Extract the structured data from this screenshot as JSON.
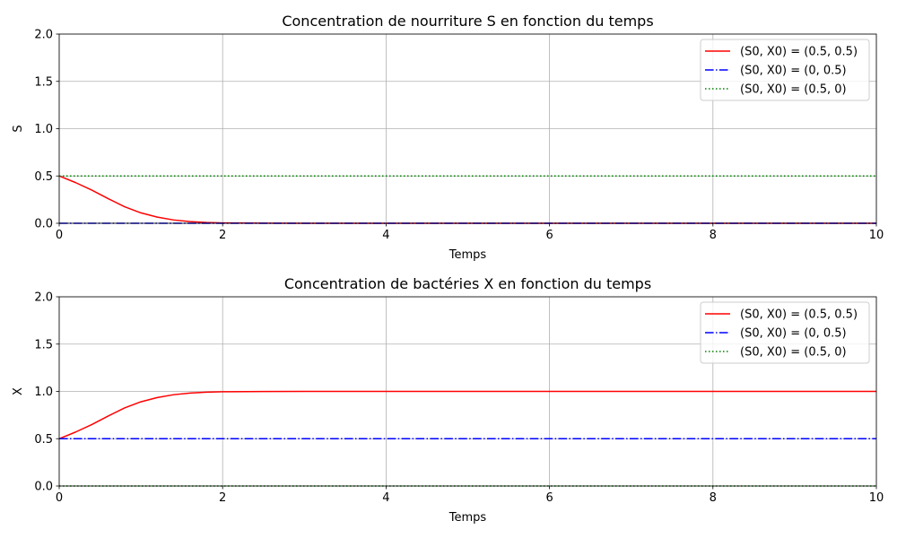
{
  "chart_data": [
    {
      "type": "line",
      "title": "Concentration de nourriture S en fonction du temps",
      "xlabel": "Temps",
      "ylabel": "S",
      "xlim": [
        0,
        10
      ],
      "ylim": [
        0,
        2
      ],
      "xticks": [
        0,
        2,
        4,
        6,
        8,
        10
      ],
      "yticks": [
        0.0,
        0.5,
        1.0,
        1.5,
        2.0
      ],
      "xtick_labels": [
        "0",
        "2",
        "4",
        "6",
        "8",
        "10"
      ],
      "ytick_labels": [
        "0.0",
        "0.5",
        "1.0",
        "1.5",
        "2.0"
      ],
      "grid": true,
      "legend_position": "top-right",
      "series": [
        {
          "name": "(S0, X0) = (0.5, 0.5)",
          "color": "#ff0000",
          "style": "solid",
          "x": [
            0,
            0.2,
            0.4,
            0.6,
            0.8,
            1.0,
            1.2,
            1.4,
            1.6,
            1.8,
            2.0,
            2.5,
            3,
            4,
            5,
            6,
            7,
            8,
            9,
            10
          ],
          "y": [
            0.5,
            0.43,
            0.35,
            0.26,
            0.175,
            0.11,
            0.065,
            0.035,
            0.018,
            0.008,
            0.004,
            0.001,
            0,
            0,
            0,
            0,
            0,
            0,
            0,
            0
          ]
        },
        {
          "name": "(S0, X0) = (0, 0.5)",
          "color": "#0000ff",
          "style": "dashdot",
          "x": [
            0,
            10
          ],
          "y": [
            0,
            0
          ]
        },
        {
          "name": "(S0, X0) = (0.5, 0)",
          "color": "#008000",
          "style": "dotted",
          "x": [
            0,
            10
          ],
          "y": [
            0.5,
            0.5
          ]
        }
      ]
    },
    {
      "type": "line",
      "title": "Concentration de bactéries X en fonction du temps",
      "xlabel": "Temps",
      "ylabel": "X",
      "xlim": [
        0,
        10
      ],
      "ylim": [
        0,
        2
      ],
      "xticks": [
        0,
        2,
        4,
        6,
        8,
        10
      ],
      "yticks": [
        0.0,
        0.5,
        1.0,
        1.5,
        2.0
      ],
      "xtick_labels": [
        "0",
        "2",
        "4",
        "6",
        "8",
        "10"
      ],
      "ytick_labels": [
        "0.0",
        "0.5",
        "1.0",
        "1.5",
        "2.0"
      ],
      "grid": true,
      "legend_position": "top-right",
      "series": [
        {
          "name": "(S0, X0) = (0.5, 0.5)",
          "color": "#ff0000",
          "style": "solid",
          "x": [
            0,
            0.2,
            0.4,
            0.6,
            0.8,
            1.0,
            1.2,
            1.4,
            1.6,
            1.8,
            2.0,
            2.5,
            3,
            4,
            5,
            6,
            7,
            8,
            9,
            10
          ],
          "y": [
            0.5,
            0.57,
            0.65,
            0.74,
            0.825,
            0.89,
            0.935,
            0.965,
            0.982,
            0.992,
            0.996,
            0.999,
            1.0,
            1.0,
            1.0,
            1.0,
            1.0,
            1.0,
            1.0,
            1.0
          ]
        },
        {
          "name": "(S0, X0) = (0, 0.5)",
          "color": "#0000ff",
          "style": "dashdot",
          "x": [
            0,
            10
          ],
          "y": [
            0.5,
            0.5
          ]
        },
        {
          "name": "(S0, X0) = (0.5, 0)",
          "color": "#008000",
          "style": "dotted",
          "x": [
            0,
            10
          ],
          "y": [
            0,
            0
          ]
        }
      ]
    }
  ]
}
